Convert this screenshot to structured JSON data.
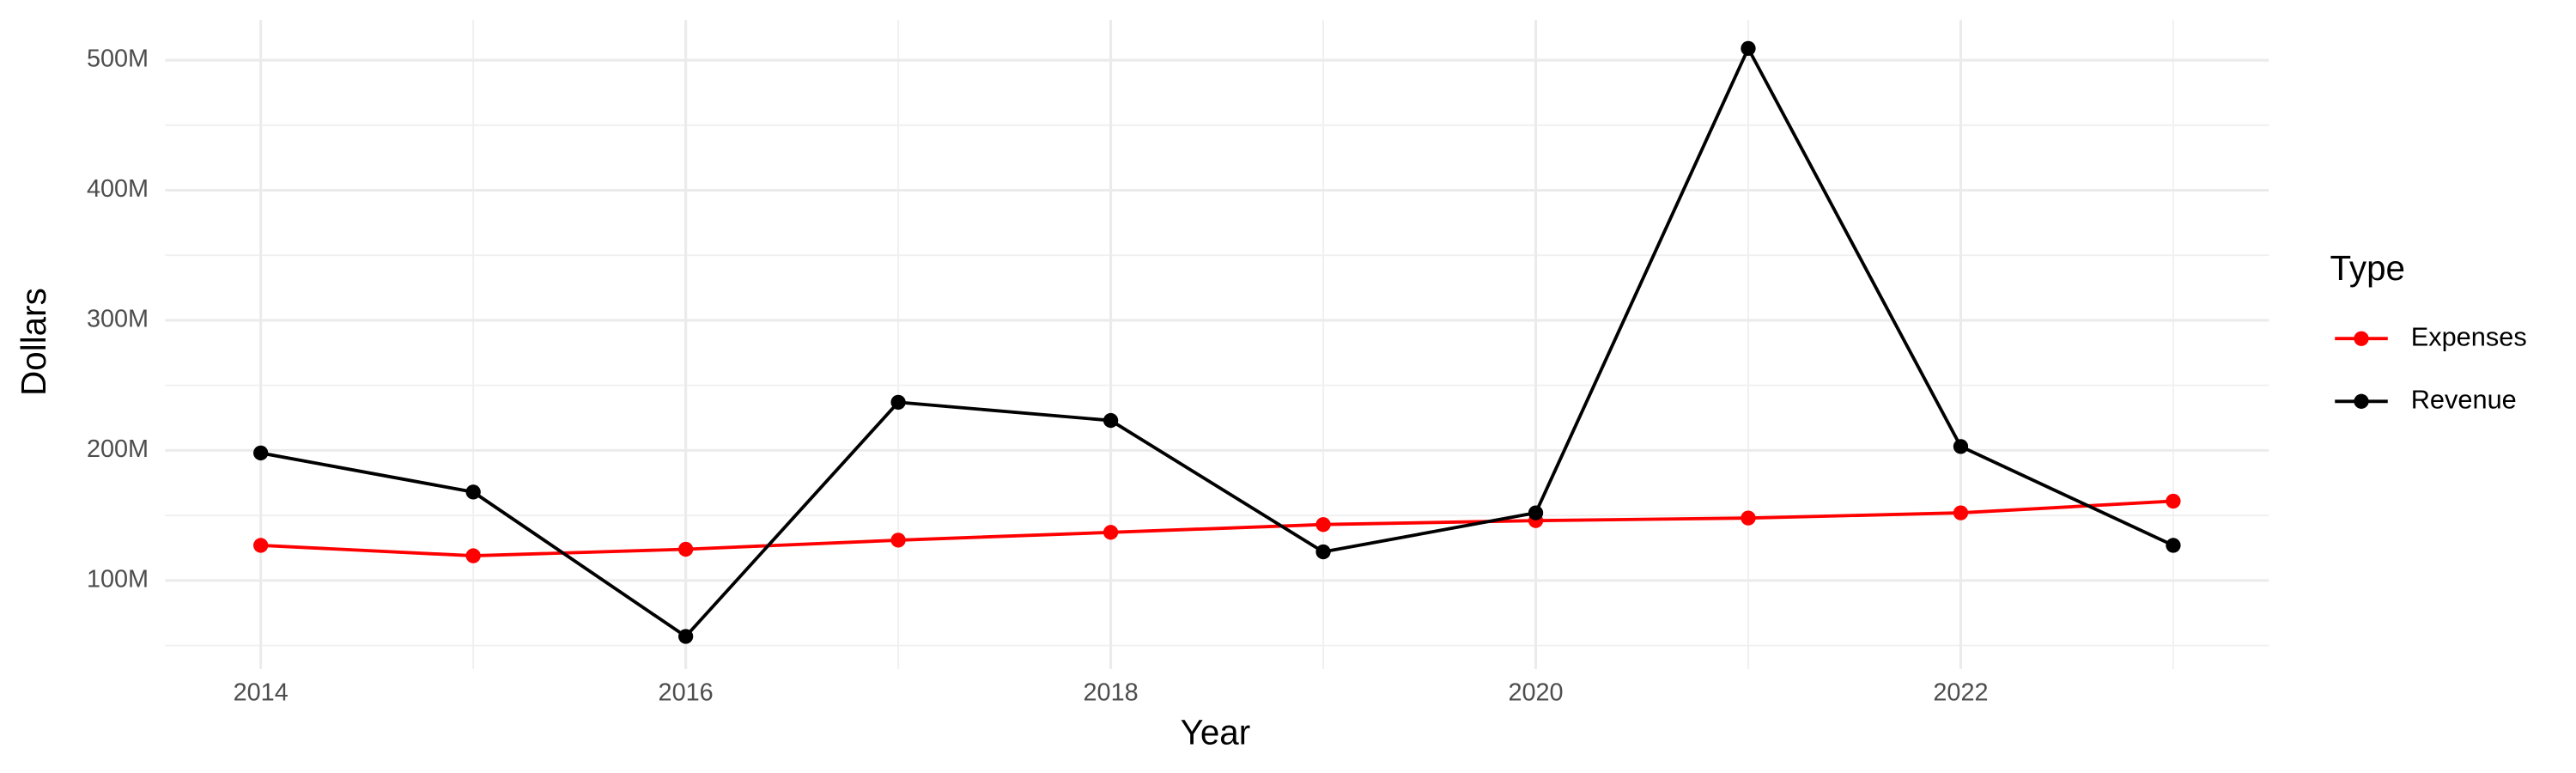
{
  "chart_data": {
    "type": "line",
    "x_label": "Year",
    "y_label": "Dollars",
    "legend_title": "Type",
    "legend_position": "right",
    "grid": true,
    "x": [
      2014,
      2015,
      2016,
      2017,
      2018,
      2019,
      2020,
      2021,
      2022,
      2023
    ],
    "series": [
      {
        "name": "Expenses",
        "color": "#ff0000",
        "values": [
          127000000,
          119000000,
          124000000,
          131000000,
          137000000,
          143000000,
          146000000,
          148000000,
          152000000,
          161000000
        ]
      },
      {
        "name": "Revenue",
        "color": "#000000",
        "values": [
          198000000,
          168000000,
          57000000,
          237000000,
          223000000,
          122000000,
          152000000,
          509000000,
          203000000,
          127000000
        ]
      }
    ],
    "xlim": [
      2013.55,
      2023.45
    ],
    "xticks": [
      2014,
      2016,
      2018,
      2020,
      2022
    ],
    "ylim": [
      32000000,
      531000000
    ],
    "yticks": [
      {
        "value": 100000000,
        "label": "100M"
      },
      {
        "value": 200000000,
        "label": "200M"
      },
      {
        "value": 300000000,
        "label": "300M"
      },
      {
        "value": 400000000,
        "label": "400M"
      },
      {
        "value": 500000000,
        "label": "500M"
      }
    ]
  }
}
